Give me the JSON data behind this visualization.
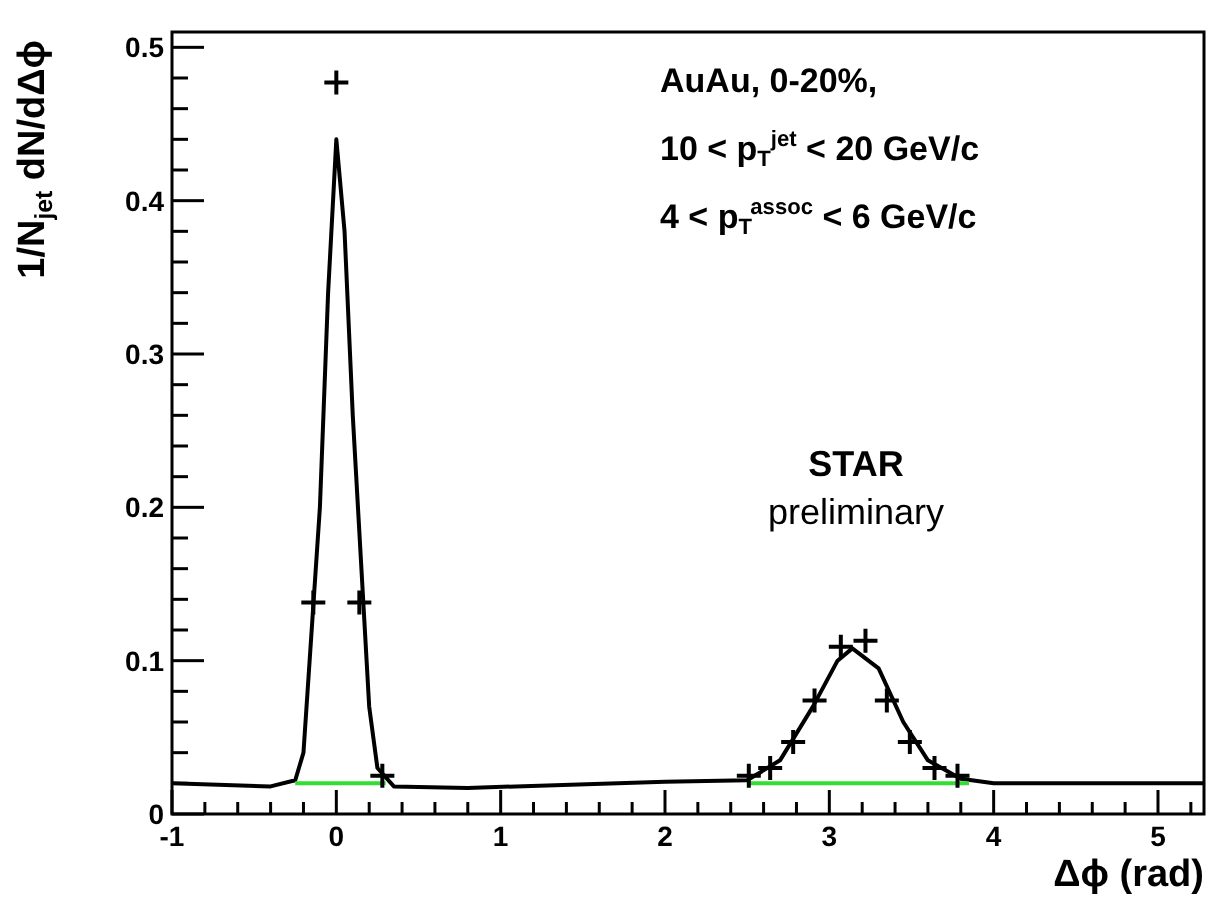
{
  "chart_data": {
    "type": "scatter",
    "xlabel": "Δϕ (rad)",
    "ylabel": "1/N$_{jet}$ dN/dΔϕ",
    "xlim": [
      -1,
      5.28
    ],
    "ylim": [
      0,
      0.51
    ],
    "xticks": [
      -1,
      {
        "value": -0.8,
        "label": null
      },
      {
        "value": -0.6,
        "label": null
      },
      {
        "value": -0.4,
        "label": null
      },
      {
        "value": -0.2,
        "label": null
      },
      0,
      {
        "value": 0.2,
        "label": null
      },
      {
        "value": 0.4,
        "label": null
      },
      {
        "value": 0.6,
        "label": null
      },
      {
        "value": 0.8,
        "label": null
      },
      1,
      {
        "value": 1.2,
        "label": null
      },
      {
        "value": 1.4,
        "label": null
      },
      {
        "value": 1.6,
        "label": null
      },
      {
        "value": 1.8,
        "label": null
      },
      2,
      {
        "value": 2.2,
        "label": null
      },
      {
        "value": 2.4,
        "label": null
      },
      {
        "value": 2.6,
        "label": null
      },
      {
        "value": 2.8,
        "label": null
      },
      3,
      {
        "value": 3.2,
        "label": null
      },
      {
        "value": 3.4,
        "label": null
      },
      {
        "value": 3.6,
        "label": null
      },
      {
        "value": 3.8,
        "label": null
      },
      4,
      {
        "value": 4.2,
        "label": null
      },
      {
        "value": 4.4,
        "label": null
      },
      {
        "value": 4.6,
        "label": null
      },
      {
        "value": 4.8,
        "label": null
      },
      5,
      {
        "value": 5.2,
        "label": null
      }
    ],
    "yticks": [
      0,
      {
        "value": 0.02,
        "label": null
      },
      {
        "value": 0.04,
        "label": null
      },
      {
        "value": 0.06,
        "label": null
      },
      {
        "value": 0.08,
        "label": null
      },
      0.1,
      {
        "value": 0.12,
        "label": null
      },
      {
        "value": 0.14,
        "label": null
      },
      {
        "value": 0.16,
        "label": null
      },
      {
        "value": 0.18,
        "label": null
      },
      0.2,
      {
        "value": 0.22,
        "label": null
      },
      {
        "value": 0.24,
        "label": null
      },
      {
        "value": 0.26,
        "label": null
      },
      {
        "value": 0.28,
        "label": null
      },
      0.3,
      {
        "value": 0.32,
        "label": null
      },
      {
        "value": 0.34,
        "label": null
      },
      {
        "value": 0.36,
        "label": null
      },
      {
        "value": 0.38,
        "label": null
      },
      0.4,
      {
        "value": 0.42,
        "label": null
      },
      {
        "value": 0.44,
        "label": null
      },
      {
        "value": 0.46,
        "label": null
      },
      {
        "value": 0.48,
        "label": null
      },
      0.5
    ],
    "grid": false,
    "marker": "cross",
    "series": [
      {
        "type": "line",
        "color": "#000000",
        "marker": "none",
        "x": [
          -1,
          -0.4,
          -0.25,
          -0.2,
          -0.1,
          -0.05,
          0,
          0.05,
          0.1,
          0.2,
          0.25,
          0.35,
          0.8,
          2,
          2.5,
          2.7,
          2.9,
          3.05,
          3.14,
          3.3,
          3.45,
          3.6,
          3.8,
          4,
          5.28
        ],
        "values": [
          0.02,
          0.018,
          0.022,
          0.04,
          0.2,
          0.34,
          0.44,
          0.38,
          0.26,
          0.07,
          0.03,
          0.018,
          0.017,
          0.021,
          0.022,
          0.035,
          0.07,
          0.1,
          0.108,
          0.095,
          0.06,
          0.035,
          0.023,
          0.02,
          0.02
        ]
      },
      {
        "type": "line",
        "color": "#33dd33",
        "marker": "none",
        "x": [
          -0.25,
          0.3
        ],
        "values": [
          0.02,
          0.02
        ]
      },
      {
        "type": "line",
        "color": "#33dd33",
        "marker": "none",
        "x": [
          2.5,
          3.85
        ],
        "values": [
          0.02,
          0.02
        ]
      },
      {
        "color": "#000000",
        "x": [
          -0.14,
          0,
          0.14,
          0.28,
          2.51,
          2.64,
          2.78,
          2.91,
          3.07,
          3.22,
          3.35,
          3.49,
          3.64,
          3.78
        ],
        "values": [
          0.138,
          0.477,
          0.138,
          0.025,
          0.025,
          0.03,
          0.047,
          0.074,
          0.109,
          0.113,
          0.074,
          0.047,
          0.03,
          0.025
        ]
      }
    ],
    "annotations": [
      "AuAu, 0-20%,",
      "10 < p$_{T}$$^{jet}$ < 20 GeV/c",
      "4 < p$_{T}$$^{assoc}$ < 6 GeV/c",
      "STAR",
      "preliminary"
    ]
  }
}
